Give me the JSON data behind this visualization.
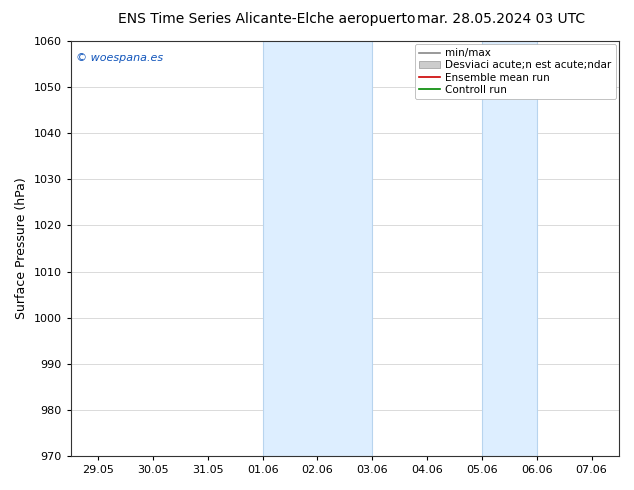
{
  "title_left": "ENS Time Series Alicante-Elche aeropuerto",
  "title_right": "mar. 28.05.2024 03 UTC",
  "ylabel": "Surface Pressure (hPa)",
  "ylim": [
    970,
    1060
  ],
  "yticks": [
    970,
    980,
    990,
    1000,
    1010,
    1020,
    1030,
    1040,
    1050,
    1060
  ],
  "xtick_labels": [
    "29.05",
    "30.05",
    "31.05",
    "01.06",
    "02.06",
    "03.06",
    "04.06",
    "05.06",
    "06.06",
    "07.06"
  ],
  "xtick_positions": [
    0,
    1,
    2,
    3,
    4,
    5,
    6,
    7,
    8,
    9
  ],
  "shaded_bands": [
    {
      "xmin": 3.0,
      "xmax": 5.0
    },
    {
      "xmin": 7.0,
      "xmax": 8.0
    }
  ],
  "shade_color": "#ddeeff",
  "shade_edge_color": "#b8d4ee",
  "watermark": "© woespana.es",
  "watermark_color": "#1155bb",
  "legend_labels": [
    "min/max",
    "Desviaci acute;n est acute;ndar",
    "Ensemble mean run",
    "Controll run"
  ],
  "legend_colors": [
    "#888888",
    "#cccccc",
    "#cc0000",
    "#008800"
  ],
  "bg_color": "#ffffff",
  "plot_bg_color": "#ffffff",
  "grid_color": "#cccccc",
  "spine_color": "#333333",
  "title_fontsize": 10,
  "tick_fontsize": 8,
  "ylabel_fontsize": 9,
  "legend_fontsize": 7.5
}
